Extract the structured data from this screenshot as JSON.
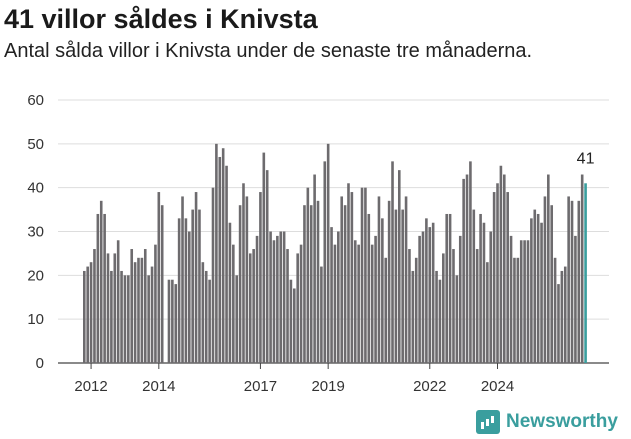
{
  "header": {
    "title": "41 villor såldes i Knivsta",
    "subtitle": "Antal sålda villor i Knivsta under de senaste tre månaderna."
  },
  "brand": {
    "name": "Newsworthy",
    "icon": "bar-chart-icon",
    "color": "#3a9e9e"
  },
  "chart_data": {
    "type": "bar",
    "title": "41 villor såldes i Knivsta",
    "subtitle": "Antal sålda villor i Knivsta under de senaste tre månaderna.",
    "xlabel": "",
    "ylabel": "",
    "ylim": [
      0,
      60
    ],
    "yticks": [
      0,
      10,
      20,
      30,
      40,
      50,
      60
    ],
    "xtick_labels": [
      "2012",
      "2014",
      "2017",
      "2019",
      "2022",
      "2024"
    ],
    "xtick_index": [
      2,
      22,
      52,
      72,
      102,
      122
    ],
    "grid": true,
    "bar_color": "#6d6b6e",
    "highlight_color": "#3a9e9e",
    "highlight_label": "41",
    "values": [
      21,
      22,
      23,
      26,
      34,
      37,
      34,
      25,
      21,
      25,
      28,
      21,
      20,
      20,
      26,
      23,
      24,
      24,
      26,
      20,
      22,
      27,
      39,
      36,
      0,
      19,
      19,
      18,
      33,
      38,
      33,
      30,
      35,
      39,
      35,
      23,
      21,
      19,
      40,
      50,
      47,
      49,
      45,
      32,
      27,
      20,
      36,
      41,
      38,
      25,
      26,
      29,
      39,
      48,
      44,
      30,
      28,
      29,
      30,
      30,
      26,
      19,
      17,
      25,
      27,
      36,
      40,
      36,
      43,
      37,
      22,
      46,
      50,
      31,
      27,
      30,
      38,
      36,
      41,
      39,
      28,
      27,
      40,
      40,
      34,
      27,
      29,
      38,
      33,
      24,
      37,
      46,
      35,
      44,
      35,
      38,
      26,
      21,
      24,
      29,
      30,
      33,
      31,
      32,
      21,
      19,
      25,
      34,
      34,
      26,
      20,
      29,
      42,
      43,
      46,
      35,
      26,
      34,
      32,
      23,
      30,
      39,
      41,
      45,
      43,
      39,
      29,
      24,
      24,
      28,
      28,
      28,
      33,
      35,
      34,
      32,
      38,
      43,
      36,
      24,
      18,
      21,
      22,
      38,
      37,
      29,
      37,
      43,
      41
    ]
  }
}
